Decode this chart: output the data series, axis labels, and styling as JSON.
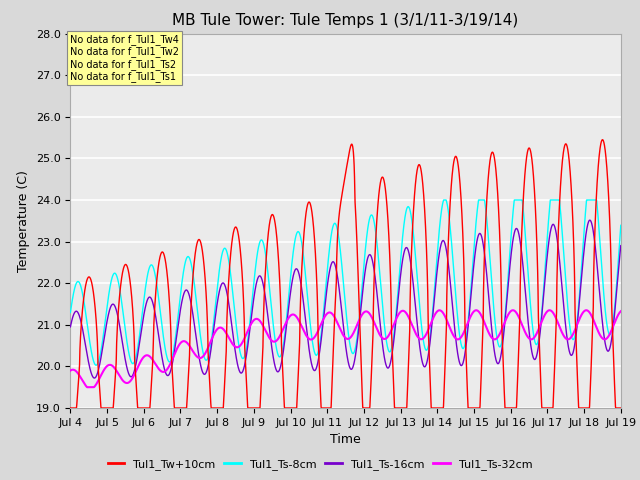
{
  "title": "MB Tule Tower: Tule Temps 1 (3/1/11-3/19/14)",
  "xlabel": "Time",
  "ylabel": "Temperature (C)",
  "ylim": [
    19.0,
    28.0
  ],
  "xlim": [
    0,
    15
  ],
  "yticks": [
    19.0,
    20.0,
    21.0,
    22.0,
    23.0,
    24.0,
    25.0,
    26.0,
    27.0,
    28.0
  ],
  "xtick_labels": [
    "Jul 4",
    "Jul 5",
    "Jul 6",
    "Jul 7",
    "Jul 8",
    "Jul 9",
    "Jul 10",
    "Jul 11",
    "Jul 12",
    "Jul 13",
    "Jul 14",
    "Jul 15",
    "Jul 16",
    "Jul 17",
    "Jul 18",
    "Jul 19"
  ],
  "colors": {
    "Tul1_Tw+10cm": "#ff0000",
    "Tul1_Ts-8cm": "#00ffff",
    "Tul1_Ts-16cm": "#7700cc",
    "Tul1_Ts-32cm": "#ff00ff"
  },
  "legend_labels": [
    "Tul1_Tw+10cm",
    "Tul1_Ts-8cm",
    "Tul1_Ts-16cm",
    "Tul1_Ts-32cm"
  ],
  "no_data_text": [
    "No data for f_Tul1_Tw4",
    "No data for f_Tul1_Tw2",
    "No data for f_Tul1_Ts2",
    "No data for f_Tul1_Ts1"
  ],
  "annotation_box_color": "#ffff99",
  "background_color": "#d9d9d9",
  "plot_background": "#ebebeb",
  "grid_color": "#ffffff",
  "title_fontsize": 11,
  "axis_fontsize": 9,
  "tick_fontsize": 8
}
